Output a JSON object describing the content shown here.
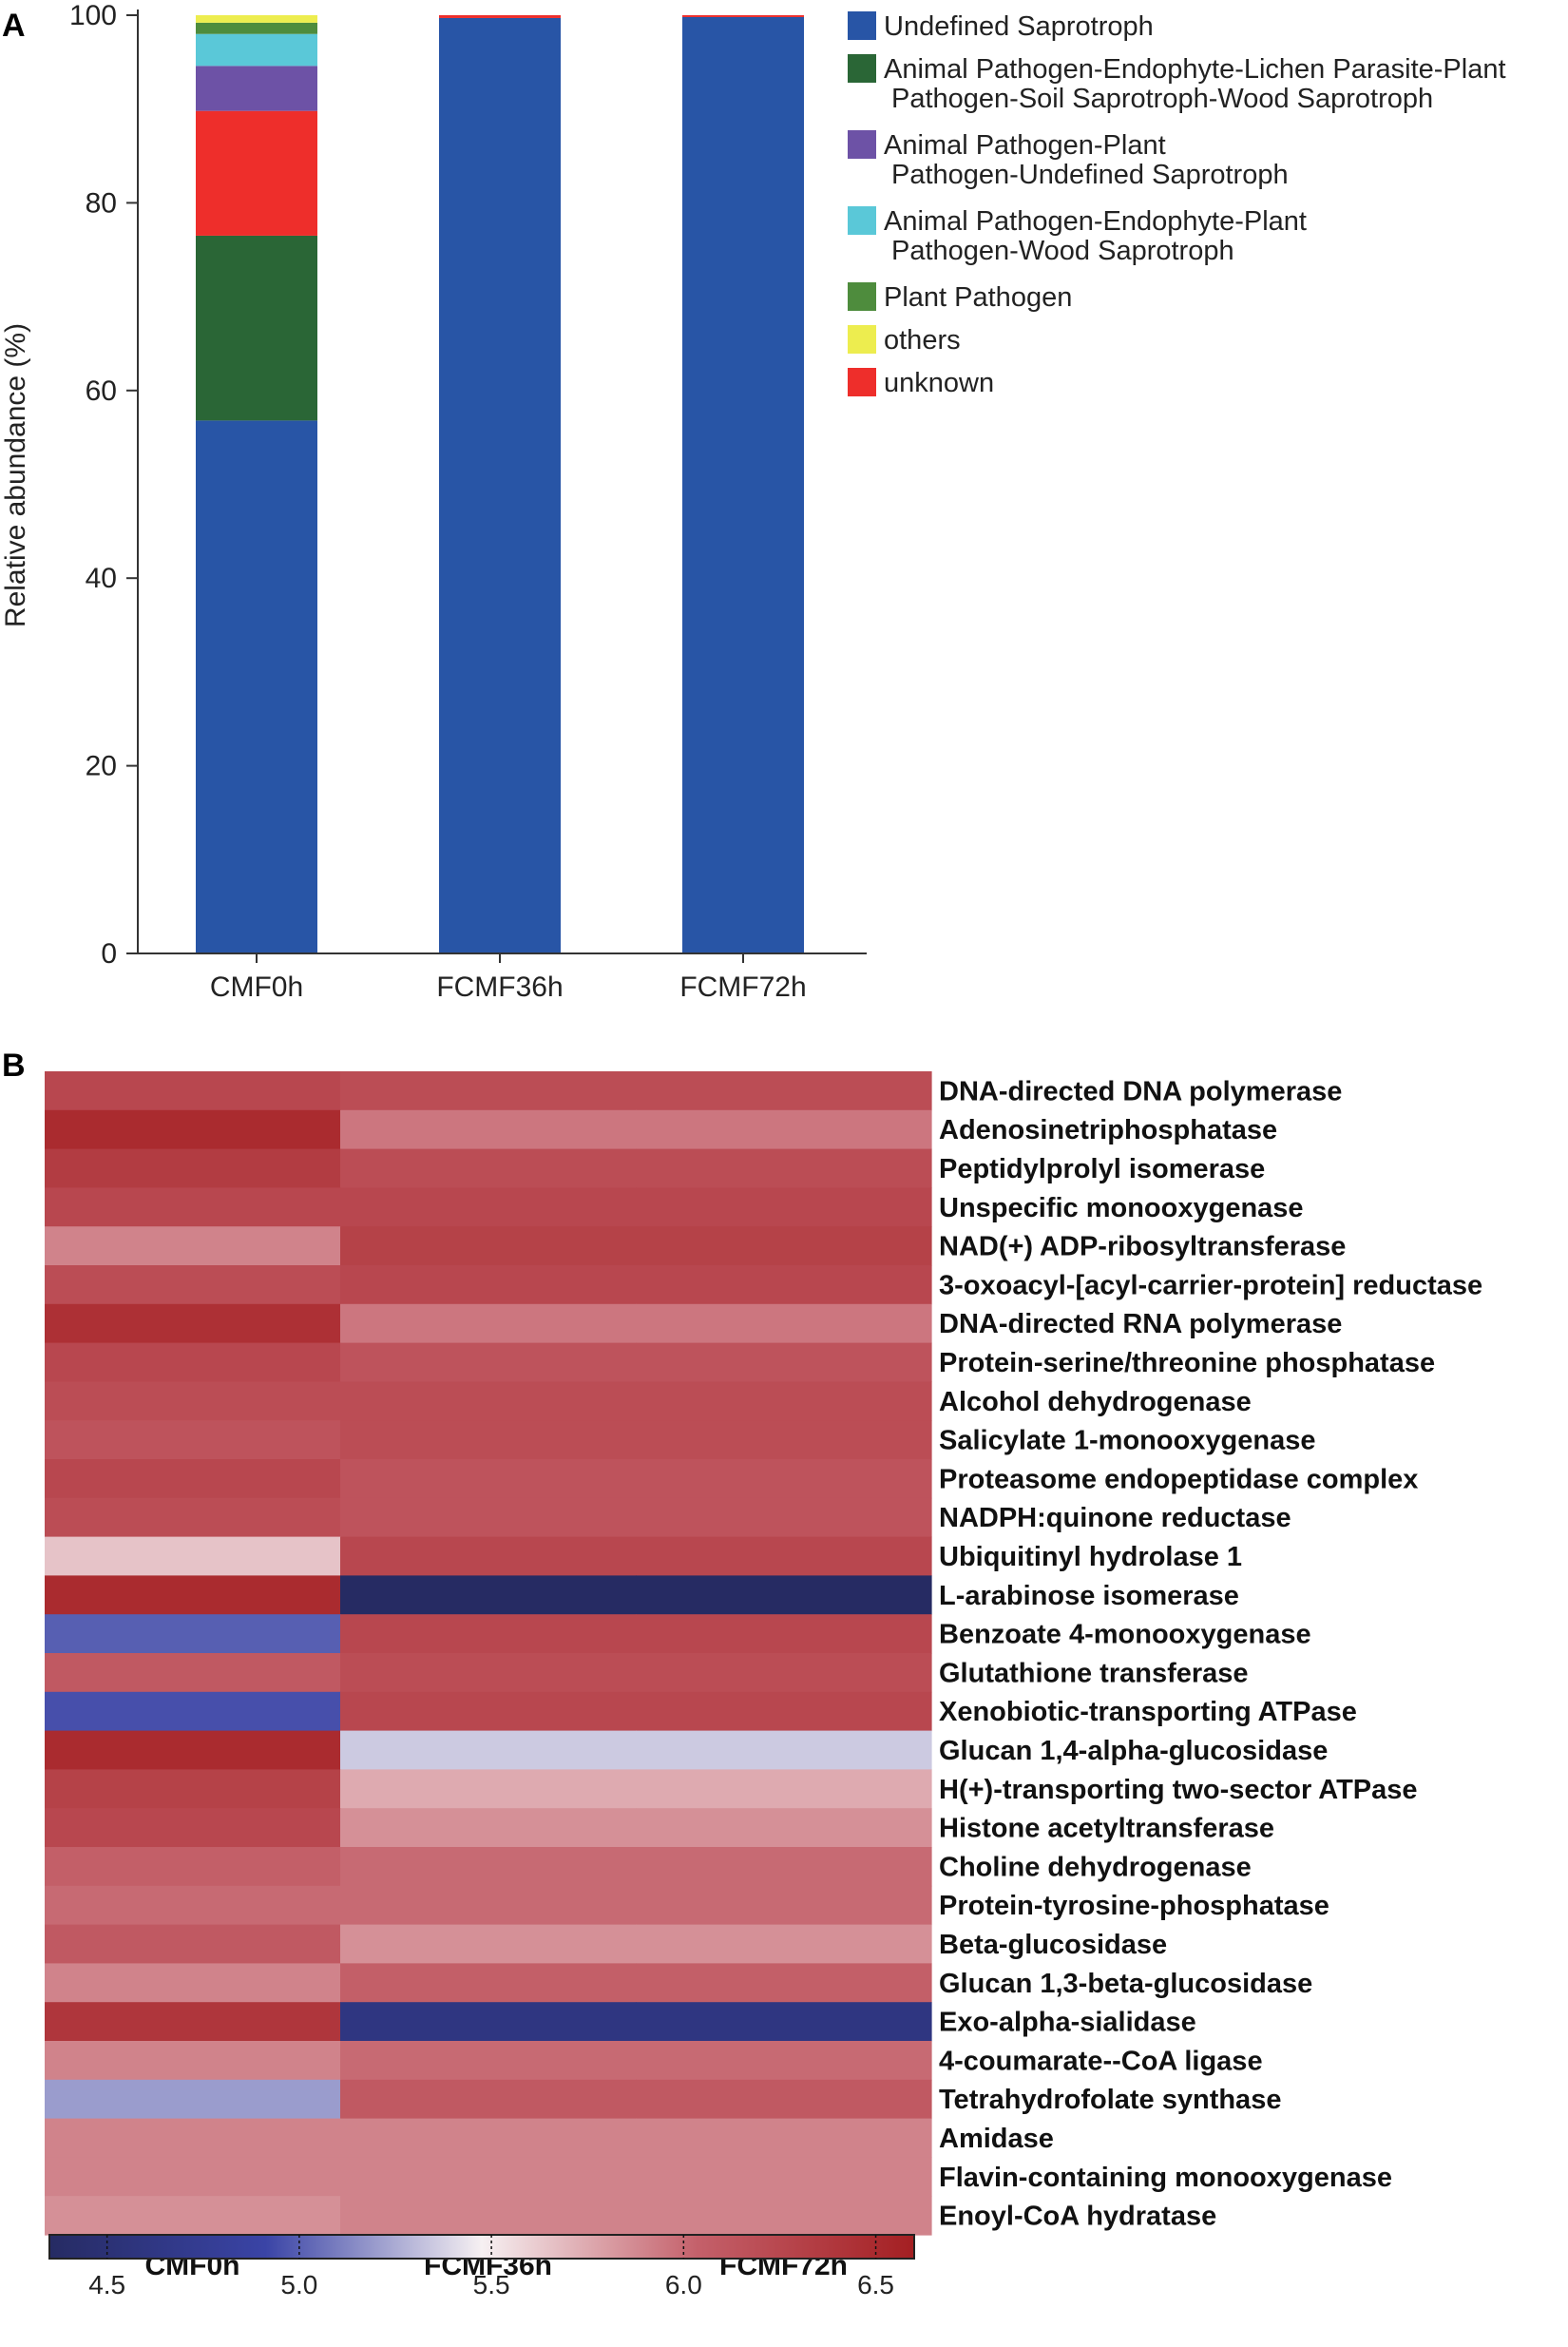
{
  "chart_data": [
    {
      "panel": "A",
      "type": "bar",
      "stacked": true,
      "title": "",
      "xlabel": "",
      "ylabel": "Relative abundance (%)",
      "ylim": [
        0,
        100
      ],
      "yticks": [
        0,
        20,
        40,
        60,
        80,
        100
      ],
      "categories": [
        "CMF0h",
        "FCMF36h",
        "FCMF72h"
      ],
      "legend_position": "right",
      "series": [
        {
          "name": "Undefined Saprotroph",
          "color": "#2855a6",
          "values": [
            56.8,
            99.7,
            99.8
          ]
        },
        {
          "name": "Animal Pathogen-Endophyte-Lichen Parasite-Plant Pathogen-Soil Saprotroph-Wood Saprotroph",
          "legend_lines": [
            "Animal Pathogen-Endophyte-Lichen Parasite-Plant",
            "Pathogen-Soil Saprotroph-Wood Saprotroph"
          ],
          "color": "#2a6636",
          "values": [
            19.7,
            0,
            0
          ]
        },
        {
          "name": "unknown",
          "color": "#ee2e2b",
          "values": [
            13.3,
            0.3,
            0.2
          ]
        },
        {
          "name": "Animal Pathogen-Plant Pathogen-Undefined Saprotroph",
          "legend_lines": [
            "Animal Pathogen-Plant",
            "Pathogen-Undefined Saprotroph"
          ],
          "color": "#6d52a6",
          "values": [
            4.8,
            0,
            0
          ]
        },
        {
          "name": "Animal Pathogen-Endophyte-Plant Pathogen-Wood Saprotroph",
          "legend_lines": [
            "Animal Pathogen-Endophyte-Plant",
            "Pathogen-Wood Saprotroph"
          ],
          "color": "#5ac8d8",
          "values": [
            3.4,
            0,
            0
          ]
        },
        {
          "name": "Plant Pathogen",
          "color": "#4e8c3d",
          "values": [
            1.2,
            0,
            0
          ]
        },
        {
          "name": "others",
          "color": "#eded4f",
          "values": [
            0.8,
            0,
            0
          ]
        }
      ],
      "legend_order": [
        "Undefined Saprotroph",
        "Animal Pathogen-Endophyte-Lichen Parasite-Plant Pathogen-Soil Saprotroph-Wood Saprotroph",
        "Animal Pathogen-Plant Pathogen-Undefined Saprotroph",
        "Animal Pathogen-Endophyte-Plant Pathogen-Wood Saprotroph",
        "Plant Pathogen",
        "others",
        "unknown"
      ]
    },
    {
      "panel": "B",
      "type": "heatmap",
      "columns": [
        "CMF0h",
        "FCMF36h",
        "FCMF72h"
      ],
      "rows": [
        {
          "name": "DNA-directed DNA polymerase",
          "values": [
            6.25,
            6.2,
            6.2
          ]
        },
        {
          "name": "Adenosinetriphosphatase",
          "values": [
            6.5,
            5.95,
            5.95
          ]
        },
        {
          "name": "Peptidylprolyl isomerase",
          "values": [
            6.35,
            6.2,
            6.2
          ]
        },
        {
          "name": "Unspecific monooxygenase",
          "values": [
            6.25,
            6.25,
            6.25
          ]
        },
        {
          "name": "NAD(+) ADP-ribosyltransferase",
          "values": [
            5.9,
            6.3,
            6.3
          ]
        },
        {
          "name": "3-oxoacyl-[acyl-carrier-protein] reductase",
          "values": [
            6.2,
            6.25,
            6.25
          ]
        },
        {
          "name": "DNA-directed RNA polymerase",
          "values": [
            6.45,
            5.95,
            5.95
          ]
        },
        {
          "name": "Protein-serine/threonine phosphatase",
          "values": [
            6.25,
            6.15,
            6.15
          ]
        },
        {
          "name": "Alcohol dehydrogenase",
          "values": [
            6.2,
            6.2,
            6.2
          ]
        },
        {
          "name": "Salicylate 1-monooxygenase",
          "values": [
            6.15,
            6.2,
            6.2
          ]
        },
        {
          "name": "Proteasome endopeptidase complex",
          "values": [
            6.25,
            6.15,
            6.15
          ]
        },
        {
          "name": "NADPH:quinone reductase",
          "values": [
            6.2,
            6.15,
            6.15
          ]
        },
        {
          "name": "Ubiquitinyl hydrolase 1",
          "values": [
            5.65,
            6.25,
            6.25
          ]
        },
        {
          "name": "L-arabinose isomerase",
          "values": [
            6.5,
            4.35,
            4.3
          ]
        },
        {
          "name": "Benzoate 4-monooxygenase",
          "values": [
            5.0,
            6.25,
            6.25
          ]
        },
        {
          "name": "Glutathione transferase",
          "values": [
            6.1,
            6.2,
            6.2
          ]
        },
        {
          "name": "Xenobiotic-transporting ATPase",
          "values": [
            4.95,
            6.25,
            6.25
          ]
        },
        {
          "name": "Glucan 1,4-alpha-glucosidase",
          "values": [
            6.5,
            5.35,
            5.35
          ]
        },
        {
          "name": "H(+)-transporting two-sector ATPase",
          "values": [
            6.3,
            5.75,
            5.75
          ]
        },
        {
          "name": "Histone acetyltransferase",
          "values": [
            6.25,
            5.85,
            5.85
          ]
        },
        {
          "name": "Choline dehydrogenase",
          "values": [
            6.05,
            6.0,
            6.0
          ]
        },
        {
          "name": "Protein-tyrosine-phosphatase",
          "values": [
            6.0,
            6.0,
            6.0
          ]
        },
        {
          "name": "Beta-glucosidase",
          "values": [
            6.1,
            5.85,
            5.85
          ]
        },
        {
          "name": "Glucan 1,3-beta-glucosidase",
          "values": [
            5.9,
            6.05,
            6.05
          ]
        },
        {
          "name": "Exo-alpha-sialidase",
          "values": [
            6.4,
            4.6,
            4.6
          ]
        },
        {
          "name": "4-coumarate--CoA ligase",
          "values": [
            5.9,
            6.0,
            6.0
          ]
        },
        {
          "name": "Tetrahydrofolate synthase",
          "values": [
            5.2,
            6.1,
            6.1
          ]
        },
        {
          "name": "Amidase",
          "values": [
            5.9,
            5.9,
            5.9
          ]
        },
        {
          "name": "Flavin-containing monooxygenase",
          "values": [
            5.9,
            5.9,
            5.9
          ]
        },
        {
          "name": "Enoyl-CoA hydratase",
          "values": [
            5.85,
            5.9,
            5.9
          ]
        }
      ],
      "colorbar": {
        "range": [
          4.35,
          6.6
        ],
        "ticks": [
          4.5,
          5.0,
          5.5,
          6.0,
          6.5
        ],
        "tick_labels": [
          "4.5",
          "5.0",
          "5.5",
          "6.0",
          "6.5"
        ],
        "colors": [
          "#262b63",
          "#3a44a6",
          "#f6f0f2",
          "#c4606a",
          "#a41f22"
        ]
      }
    }
  ],
  "labels": {
    "panel_a": "A",
    "panel_b": "B"
  }
}
